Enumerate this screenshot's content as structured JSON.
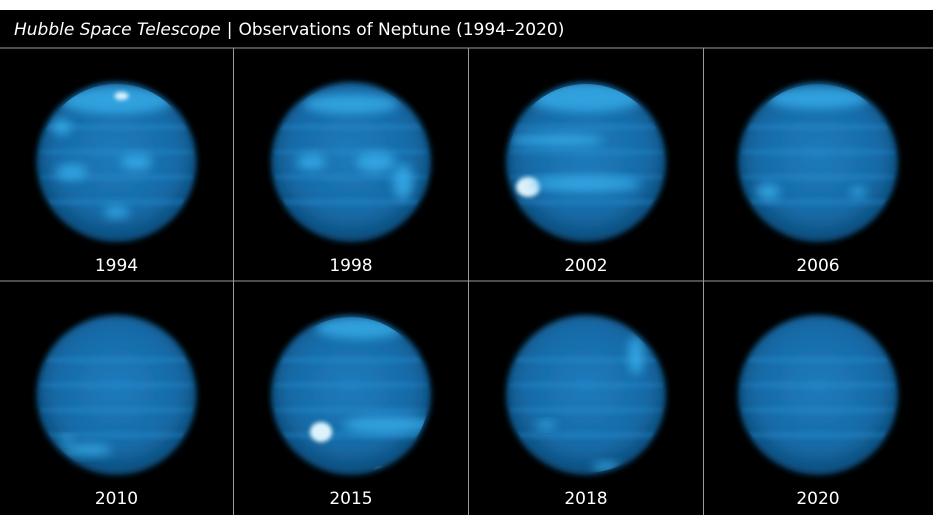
{
  "header": {
    "title_italic": "Hubble Space Telescope",
    "separator": "|",
    "title": "Observations of Neptune (1994–2020)"
  },
  "panels": [
    {
      "year": "1994"
    },
    {
      "year": "1998"
    },
    {
      "year": "2002"
    },
    {
      "year": "2006"
    },
    {
      "year": "2010"
    },
    {
      "year": "2015"
    },
    {
      "year": "2018"
    },
    {
      "year": "2020"
    }
  ]
}
